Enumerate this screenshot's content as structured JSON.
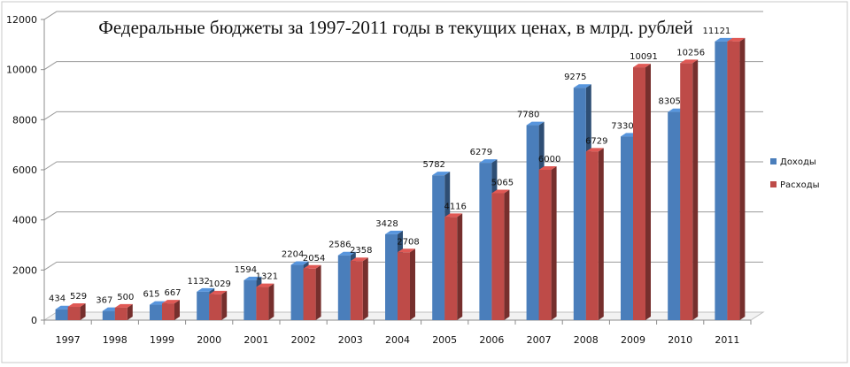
{
  "chart_data": {
    "type": "bar",
    "title": "Федеральные бюджеты за 1997-2011 годы в текущих ценах, в млрд. рублей",
    "xlabel": "",
    "ylabel": "",
    "categories": [
      "1997",
      "1998",
      "1999",
      "2000",
      "2001",
      "2002",
      "2003",
      "2004",
      "2005",
      "2006",
      "2007",
      "2008",
      "2009",
      "2010",
      "2011"
    ],
    "series": [
      {
        "name": "Доходы",
        "color": "#4a7ebb",
        "values": [
          434,
          367,
          615,
          1132,
          1594,
          2204,
          2586,
          3428,
          5782,
          6279,
          7780,
          9275,
          7330,
          8305,
          11121
        ],
        "labels": [
          "434",
          "367",
          "615",
          "1132",
          "1594",
          "2204",
          "2586",
          "3428",
          "5782",
          "6279",
          "7780",
          "9275",
          "7330",
          "8305",
          "11121"
        ]
      },
      {
        "name": "Расходы",
        "color": "#be4b48",
        "values": [
          529,
          500,
          667,
          1029,
          1321,
          2054,
          2358,
          2708,
          4116,
          5065,
          6000,
          6729,
          10091,
          10256,
          11121
        ],
        "labels": [
          "529",
          "500",
          "667",
          "1029",
          "1321",
          "2054",
          "2358",
          "2708",
          "4116",
          "5065",
          "6000",
          "6729",
          "10091",
          "10256",
          ""
        ]
      }
    ],
    "ylim": [
      0,
      12000
    ],
    "yticks": [
      0,
      2000,
      4000,
      6000,
      8000,
      10000,
      12000
    ],
    "grid": true,
    "legend": "right"
  }
}
